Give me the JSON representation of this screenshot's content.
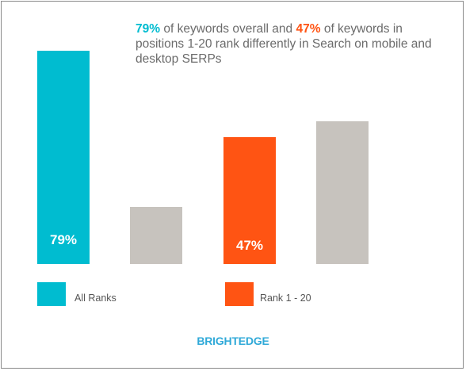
{
  "headline": {
    "highlight_1": "79%",
    "part_1": " of keywords overall and ",
    "highlight_2": "47%",
    "part_2": " of keywords in positions 1-20 rank differently in Search on mobile and desktop SERPs"
  },
  "colors": {
    "teal": "#00bcd0",
    "orange": "#ff5413",
    "gray": "#c7c3be",
    "brand": "#2fa9d8"
  },
  "chart_data": {
    "type": "bar",
    "title": "",
    "ylim": [
      0,
      100
    ],
    "bars": [
      {
        "group": "All Ranks",
        "value": 79,
        "label": "79%",
        "color": "teal"
      },
      {
        "group": "All Ranks",
        "value": 21,
        "label": "",
        "color": "gray"
      },
      {
        "group": "Rank 1 - 20",
        "value": 47,
        "label": "47%",
        "color": "orange"
      },
      {
        "group": "Rank 1 - 20",
        "value": 53,
        "label": "",
        "color": "gray"
      }
    ],
    "legend": [
      {
        "label": "All Ranks",
        "color": "teal"
      },
      {
        "label": "Rank 1 - 20",
        "color": "orange"
      }
    ]
  },
  "brand": "BRIGHTEDGE"
}
